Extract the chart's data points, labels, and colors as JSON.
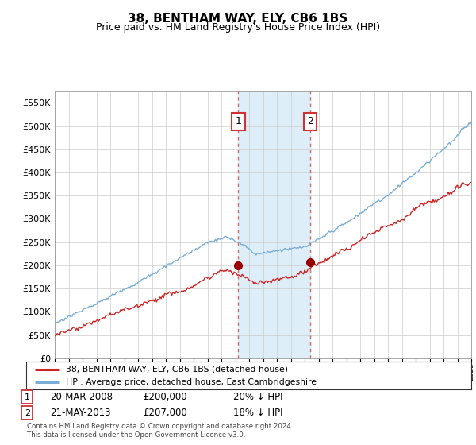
{
  "title": "38, BENTHAM WAY, ELY, CB6 1BS",
  "subtitle": "Price paid vs. HM Land Registry's House Price Index (HPI)",
  "ylim": [
    0,
    575000
  ],
  "yticks": [
    0,
    50000,
    100000,
    150000,
    200000,
    250000,
    300000,
    350000,
    400000,
    450000,
    500000,
    550000
  ],
  "xlim_start": 1995,
  "xlim_end": 2025,
  "sale1_year": 2008.22,
  "sale1_price": 200000,
  "sale2_year": 2013.39,
  "sale2_price": 207000,
  "sale1_date": "20-MAR-2008",
  "sale1_hpi_text": "20% ↓ HPI",
  "sale2_date": "21-MAY-2013",
  "sale2_hpi_text": "18% ↓ HPI",
  "hpi_color": "#7aaed6",
  "price_color": "#cc2222",
  "shaded_color": "#ddeef8",
  "dashed_color": "#dd6666",
  "grid_color": "#cccccc",
  "legend_label_price": "38, BENTHAM WAY, ELY, CB6 1BS (detached house)",
  "legend_label_hpi": "HPI: Average price, detached house, East Cambridgeshire",
  "footer": "Contains HM Land Registry data © Crown copyright and database right 2024.\nThis data is licensed under the Open Government Licence v3.0.",
  "box_edge_color": "#cc3333",
  "title_fontsize": 11,
  "subtitle_fontsize": 9
}
